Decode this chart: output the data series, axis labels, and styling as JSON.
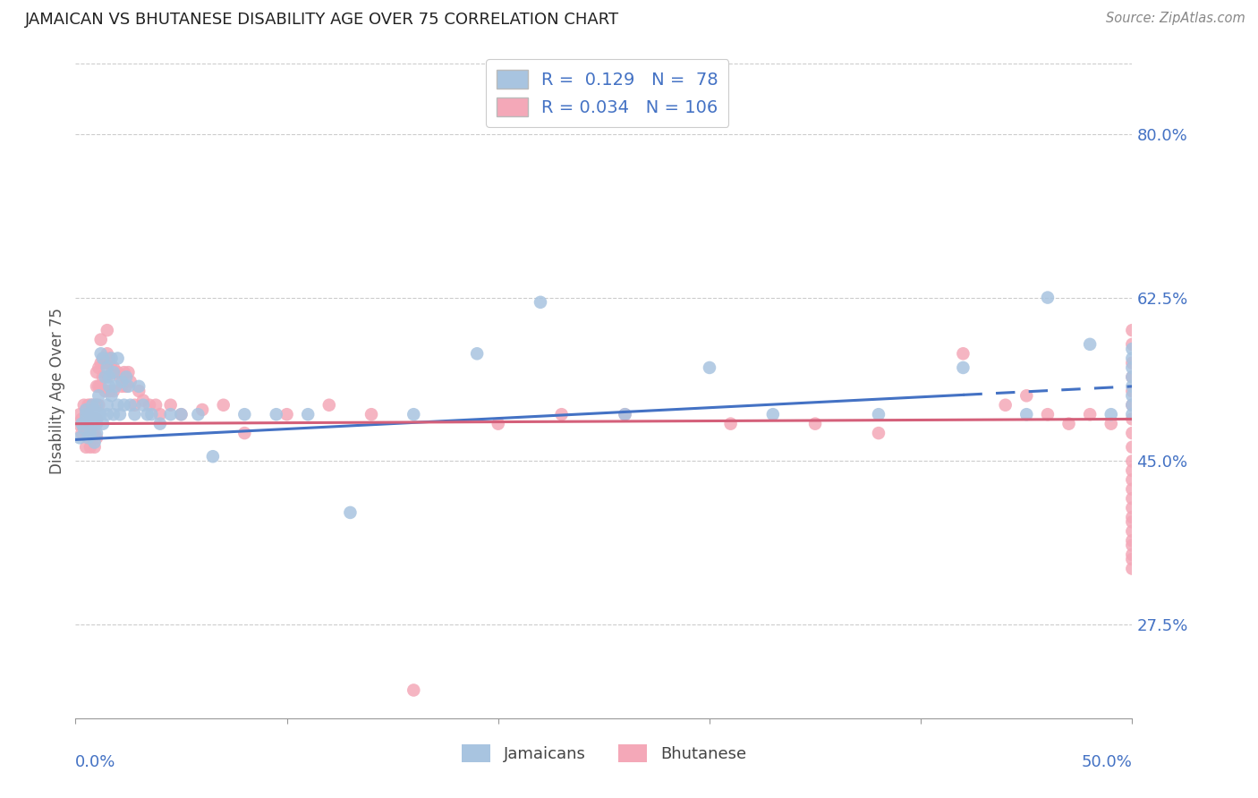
{
  "title": "JAMAICAN VS BHUTANESE DISABILITY AGE OVER 75 CORRELATION CHART",
  "source": "Source: ZipAtlas.com",
  "ylabel": "Disability Age Over 75",
  "ytick_labels": [
    "27.5%",
    "45.0%",
    "62.5%",
    "80.0%"
  ],
  "ytick_values": [
    0.275,
    0.45,
    0.625,
    0.8
  ],
  "xlim": [
    0.0,
    0.5
  ],
  "ylim": [
    0.175,
    0.875
  ],
  "r_jamaican": 0.129,
  "n_jamaican": 78,
  "r_bhutanese": 0.034,
  "n_bhutanese": 106,
  "color_jamaican": "#a8c4e0",
  "color_bhutanese": "#f4a8b8",
  "color_jamaican_line": "#4472c4",
  "color_bhutanese_line": "#d4607a",
  "color_text": "#4472c4",
  "color_axis_text": "#333333",
  "background_color": "#ffffff",
  "jamaican_x": [
    0.002,
    0.003,
    0.004,
    0.005,
    0.005,
    0.005,
    0.006,
    0.006,
    0.007,
    0.007,
    0.008,
    0.008,
    0.009,
    0.009,
    0.009,
    0.01,
    0.01,
    0.01,
    0.01,
    0.011,
    0.011,
    0.012,
    0.012,
    0.013,
    0.013,
    0.014,
    0.015,
    0.015,
    0.015,
    0.016,
    0.016,
    0.017,
    0.017,
    0.018,
    0.018,
    0.019,
    0.02,
    0.02,
    0.021,
    0.022,
    0.023,
    0.024,
    0.025,
    0.026,
    0.028,
    0.03,
    0.032,
    0.034,
    0.036,
    0.04,
    0.045,
    0.05,
    0.058,
    0.065,
    0.08,
    0.095,
    0.11,
    0.13,
    0.16,
    0.19,
    0.22,
    0.26,
    0.3,
    0.33,
    0.38,
    0.42,
    0.45,
    0.46,
    0.48,
    0.49,
    0.5,
    0.5,
    0.5,
    0.5,
    0.5,
    0.5,
    0.5,
    0.5
  ],
  "jamaican_y": [
    0.475,
    0.49,
    0.485,
    0.5,
    0.495,
    0.505,
    0.475,
    0.49,
    0.5,
    0.48,
    0.51,
    0.5,
    0.49,
    0.47,
    0.505,
    0.51,
    0.5,
    0.49,
    0.48,
    0.52,
    0.5,
    0.565,
    0.5,
    0.56,
    0.49,
    0.54,
    0.55,
    0.51,
    0.5,
    0.54,
    0.53,
    0.56,
    0.52,
    0.5,
    0.545,
    0.53,
    0.56,
    0.51,
    0.5,
    0.535,
    0.51,
    0.54,
    0.53,
    0.51,
    0.5,
    0.53,
    0.51,
    0.5,
    0.5,
    0.49,
    0.5,
    0.5,
    0.5,
    0.455,
    0.5,
    0.5,
    0.5,
    0.395,
    0.5,
    0.565,
    0.62,
    0.5,
    0.55,
    0.5,
    0.5,
    0.55,
    0.5,
    0.625,
    0.575,
    0.5,
    0.5,
    0.51,
    0.52,
    0.53,
    0.54,
    0.55,
    0.56,
    0.57
  ],
  "bhutanese_x": [
    0.001,
    0.002,
    0.003,
    0.003,
    0.004,
    0.004,
    0.005,
    0.005,
    0.005,
    0.005,
    0.006,
    0.006,
    0.006,
    0.007,
    0.007,
    0.007,
    0.007,
    0.008,
    0.008,
    0.008,
    0.009,
    0.009,
    0.009,
    0.009,
    0.01,
    0.01,
    0.01,
    0.01,
    0.01,
    0.011,
    0.011,
    0.011,
    0.012,
    0.012,
    0.012,
    0.013,
    0.013,
    0.014,
    0.014,
    0.015,
    0.015,
    0.015,
    0.016,
    0.016,
    0.017,
    0.018,
    0.018,
    0.019,
    0.02,
    0.021,
    0.022,
    0.023,
    0.024,
    0.025,
    0.026,
    0.028,
    0.03,
    0.032,
    0.035,
    0.038,
    0.04,
    0.045,
    0.05,
    0.06,
    0.07,
    0.08,
    0.1,
    0.12,
    0.14,
    0.16,
    0.2,
    0.23,
    0.26,
    0.31,
    0.35,
    0.38,
    0.42,
    0.44,
    0.45,
    0.46,
    0.47,
    0.48,
    0.49,
    0.5,
    0.5,
    0.5,
    0.5,
    0.5,
    0.5,
    0.5,
    0.5,
    0.5,
    0.5,
    0.5,
    0.5,
    0.5,
    0.5,
    0.5,
    0.5,
    0.5,
    0.5,
    0.5,
    0.5,
    0.5,
    0.5,
    0.5
  ],
  "bhutanese_y": [
    0.49,
    0.5,
    0.495,
    0.48,
    0.51,
    0.49,
    0.505,
    0.495,
    0.48,
    0.465,
    0.51,
    0.5,
    0.48,
    0.51,
    0.495,
    0.48,
    0.465,
    0.51,
    0.495,
    0.48,
    0.51,
    0.495,
    0.48,
    0.465,
    0.545,
    0.53,
    0.51,
    0.495,
    0.475,
    0.55,
    0.53,
    0.51,
    0.58,
    0.555,
    0.53,
    0.56,
    0.54,
    0.555,
    0.525,
    0.59,
    0.565,
    0.54,
    0.56,
    0.525,
    0.55,
    0.55,
    0.525,
    0.545,
    0.545,
    0.54,
    0.53,
    0.545,
    0.53,
    0.545,
    0.535,
    0.51,
    0.525,
    0.515,
    0.51,
    0.51,
    0.5,
    0.51,
    0.5,
    0.505,
    0.51,
    0.48,
    0.5,
    0.51,
    0.5,
    0.205,
    0.49,
    0.5,
    0.5,
    0.49,
    0.49,
    0.48,
    0.565,
    0.51,
    0.52,
    0.5,
    0.49,
    0.5,
    0.49,
    0.59,
    0.575,
    0.555,
    0.54,
    0.525,
    0.51,
    0.495,
    0.48,
    0.465,
    0.45,
    0.44,
    0.43,
    0.42,
    0.41,
    0.4,
    0.39,
    0.385,
    0.375,
    0.365,
    0.36,
    0.35,
    0.345,
    0.335
  ]
}
